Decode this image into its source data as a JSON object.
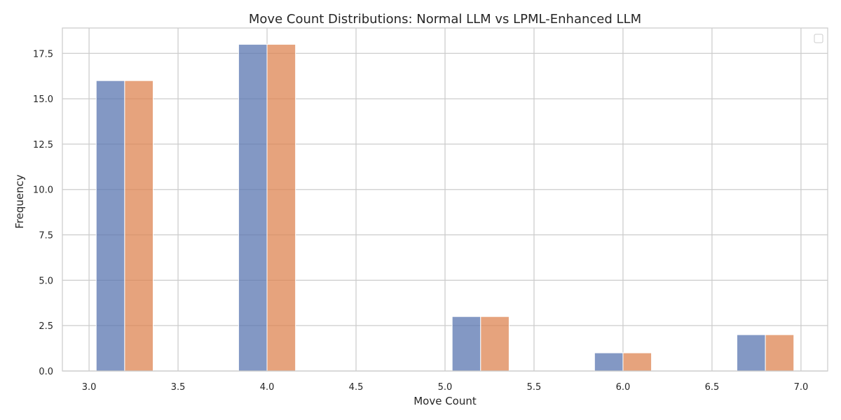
{
  "chart_data": {
    "type": "bar",
    "title": "Move Count Distributions: Normal LLM vs LPML-Enhanced LLM",
    "xlabel": "Move Count",
    "ylabel": "Frequency",
    "xlim": [
      2.85,
      7.15
    ],
    "ylim": [
      0,
      18.9
    ],
    "xticks": [
      "3.0",
      "3.5",
      "4.0",
      "4.5",
      "5.0",
      "5.5",
      "6.0",
      "6.5",
      "7.0"
    ],
    "yticks": [
      "0.0",
      "2.5",
      "5.0",
      "7.5",
      "10.0",
      "12.5",
      "15.0",
      "17.5"
    ],
    "grid": true,
    "legend": {
      "position": "top-right",
      "entries": []
    },
    "bins": [
      {
        "start": 3.04,
        "end": 3.2,
        "group": 0
      },
      {
        "start": 3.2,
        "end": 3.36,
        "group": 1
      },
      {
        "start": 3.84,
        "end": 4.0,
        "group": 0
      },
      {
        "start": 4.0,
        "end": 4.16,
        "group": 1
      },
      {
        "start": 5.04,
        "end": 5.2,
        "group": 0
      },
      {
        "start": 5.2,
        "end": 5.36,
        "group": 1
      },
      {
        "start": 5.84,
        "end": 6.0,
        "group": 0
      },
      {
        "start": 6.0,
        "end": 6.16,
        "group": 1
      },
      {
        "start": 6.64,
        "end": 6.8,
        "group": 0
      },
      {
        "start": 6.8,
        "end": 6.96,
        "group": 1
      }
    ],
    "values": [
      16,
      16,
      18,
      18,
      3,
      3,
      1,
      1,
      2,
      2
    ],
    "colors": [
      "#5975b0",
      "#dd8452"
    ]
  }
}
